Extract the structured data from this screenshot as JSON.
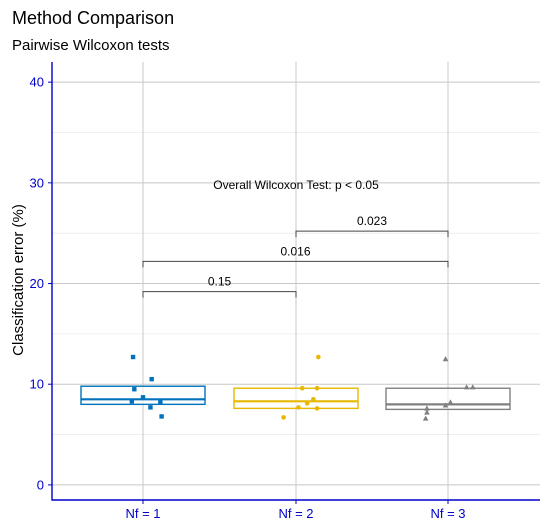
{
  "chart_data": {
    "type": "box",
    "title": "Method Comparison",
    "subtitle": "Pairwise Wilcoxon tests",
    "xlabel": "",
    "ylabel": "Classification error (%)",
    "categories": [
      "Nf = 1",
      "Nf = 2",
      "Nf = 3"
    ],
    "ylim": [
      -1.5,
      42
    ],
    "yticks": [
      0,
      10,
      20,
      30,
      40
    ],
    "ytick_labels": [
      "0",
      "10",
      "20",
      "30",
      "40"
    ],
    "grid": true,
    "axis_color": "#0000cc",
    "series": [
      {
        "category": "Nf = 1",
        "color": "#0072bd",
        "marker": "square",
        "box": {
          "q1": 8.0,
          "median": 8.5,
          "q3": 9.8
        },
        "points": [
          {
            "x": -0.08,
            "y": 12.7
          },
          {
            "x": 0.07,
            "y": 10.5
          },
          {
            "x": -0.07,
            "y": 9.5
          },
          {
            "x": 0.0,
            "y": 8.7
          },
          {
            "x": -0.09,
            "y": 8.3
          },
          {
            "x": 0.14,
            "y": 8.2
          },
          {
            "x": 0.06,
            "y": 7.7
          },
          {
            "x": 0.15,
            "y": 6.8
          }
        ]
      },
      {
        "category": "Nf = 2",
        "color": "#e6b800",
        "marker": "circle",
        "box": {
          "q1": 7.6,
          "median": 8.3,
          "q3": 9.6
        },
        "points": [
          {
            "x": 0.18,
            "y": 12.7
          },
          {
            "x": 0.05,
            "y": 9.6
          },
          {
            "x": 0.17,
            "y": 9.6
          },
          {
            "x": 0.14,
            "y": 8.5
          },
          {
            "x": 0.09,
            "y": 8.1
          },
          {
            "x": 0.02,
            "y": 7.7
          },
          {
            "x": 0.17,
            "y": 7.6
          },
          {
            "x": -0.1,
            "y": 6.7
          }
        ]
      },
      {
        "category": "Nf = 3",
        "color": "#808080",
        "marker": "triangle",
        "box": {
          "q1": 7.5,
          "median": 8.0,
          "q3": 9.6
        },
        "points": [
          {
            "x": -0.02,
            "y": 12.5
          },
          {
            "x": 0.15,
            "y": 9.7
          },
          {
            "x": 0.2,
            "y": 9.7
          },
          {
            "x": 0.02,
            "y": 8.2
          },
          {
            "x": -0.02,
            "y": 7.9
          },
          {
            "x": -0.17,
            "y": 7.6
          },
          {
            "x": -0.17,
            "y": 7.2
          },
          {
            "x": -0.18,
            "y": 6.6
          }
        ]
      }
    ],
    "comparisons": [
      {
        "from": "Nf = 1",
        "to": "Nf = 2",
        "y": 19.2,
        "label": "0.15"
      },
      {
        "from": "Nf = 1",
        "to": "Nf = 3",
        "y": 22.2,
        "label": "0.016"
      },
      {
        "from": "Nf = 2",
        "to": "Nf = 3",
        "y": 25.2,
        "label": "0.023"
      }
    ],
    "annotation": {
      "text": "Overall Wilcoxon Test: p < 0.05",
      "x_category": "Nf = 2",
      "y": 29.8
    }
  }
}
